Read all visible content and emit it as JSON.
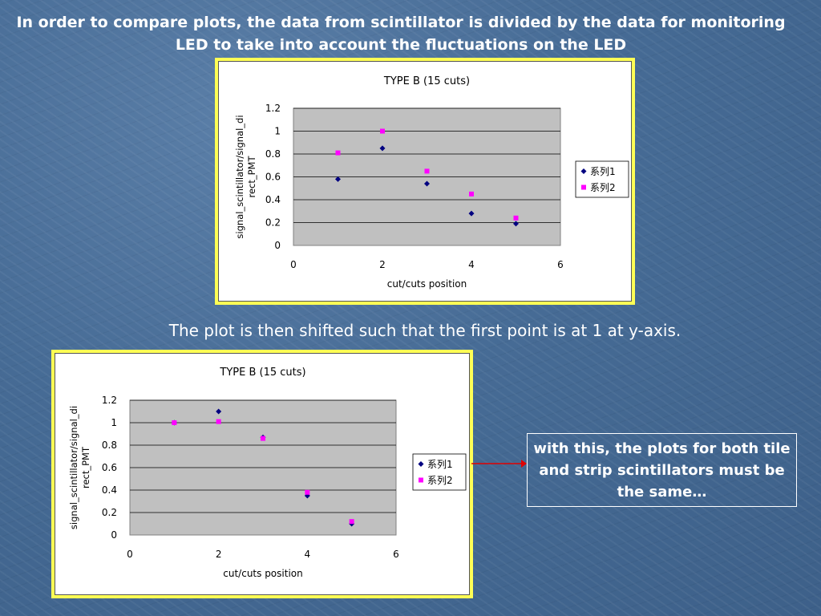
{
  "slide": {
    "headline": "In order to compare plots, the data from scintillator is divided by the data for monitoring LED to take into account the fluctuations on the LED",
    "subtitle": "The plot is then shifted such that the first point is at 1 at y-axis.",
    "note": "with this, the plots for both tile and strip scintillators must be the same…"
  },
  "colors": {
    "series1": "#000080",
    "series2": "#ff00ff",
    "plot_bg": "#c0c0c0",
    "frame": "#ffff55",
    "arrow": "#e00000"
  },
  "chart_data": [
    {
      "type": "scatter",
      "title": "TYPE B (15 cuts)",
      "xlabel": "cut/cuts position",
      "ylabel": "signal_scintillator/signal_direct_PMT",
      "xlim": [
        0,
        6
      ],
      "ylim": [
        0,
        1.2
      ],
      "xticks": [
        "0",
        "2",
        "4",
        "6"
      ],
      "yticks": [
        "0",
        "0.2",
        "0.4",
        "0.6",
        "0.8",
        "1",
        "1.2"
      ],
      "grid": true,
      "legend": "right",
      "series": [
        {
          "name": "系列1",
          "x": [
            1,
            2,
            3,
            4,
            5
          ],
          "y": [
            0.58,
            0.85,
            0.54,
            0.28,
            0.19
          ]
        },
        {
          "name": "系列2",
          "x": [
            1,
            2,
            3,
            4,
            5
          ],
          "y": [
            0.81,
            1.0,
            0.65,
            0.45,
            0.24
          ]
        }
      ]
    },
    {
      "type": "scatter",
      "title": "TYPE B (15 cuts)",
      "xlabel": "cut/cuts position",
      "ylabel": "signal_scintillator/signal_direct_PMT",
      "xlim": [
        0,
        6
      ],
      "ylim": [
        0,
        1.2
      ],
      "xticks": [
        "0",
        "2",
        "4",
        "6"
      ],
      "yticks": [
        "0",
        "0.2",
        "0.4",
        "0.6",
        "0.8",
        "1",
        "1.2"
      ],
      "grid": true,
      "legend": "right",
      "series": [
        {
          "name": "系列1",
          "x": [
            1,
            2,
            3,
            4,
            5
          ],
          "y": [
            1.0,
            1.1,
            0.87,
            0.35,
            0.1
          ]
        },
        {
          "name": "系列2",
          "x": [
            1,
            2,
            3,
            4,
            5
          ],
          "y": [
            1.0,
            1.01,
            0.86,
            0.38,
            0.12
          ]
        }
      ]
    }
  ]
}
